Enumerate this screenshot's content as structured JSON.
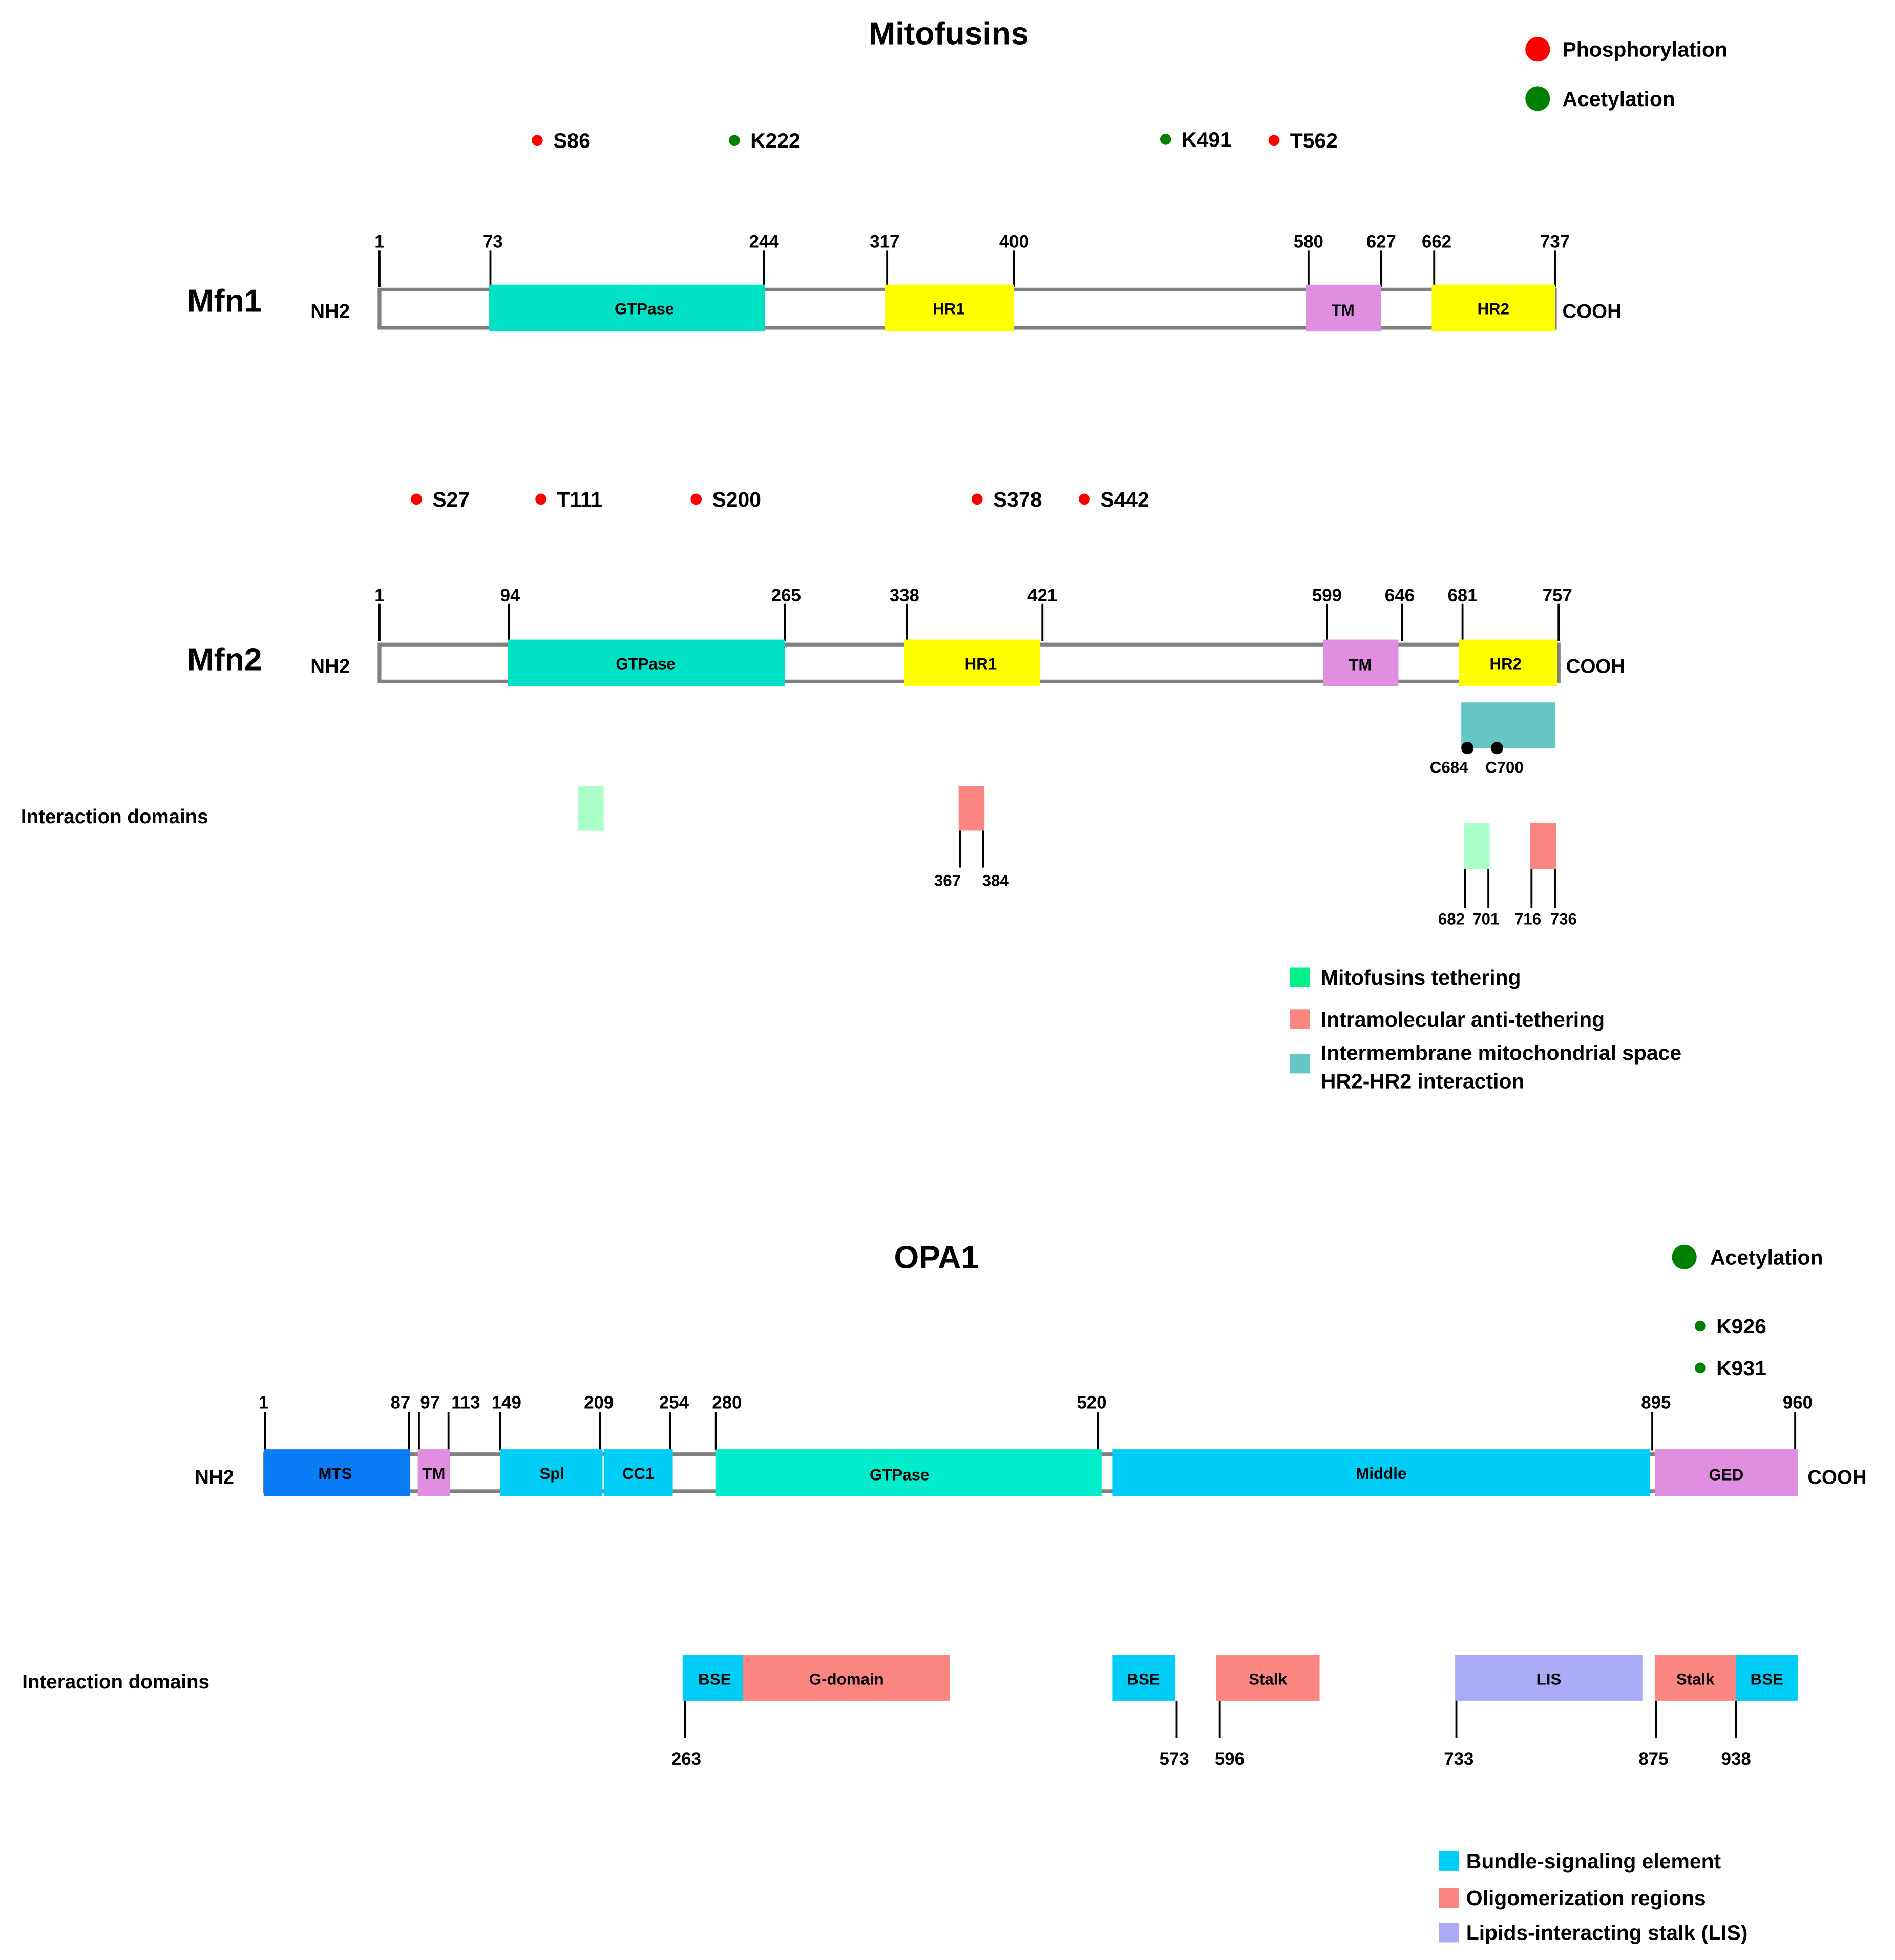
{
  "mitofusins": {
    "title": "Mitofusins",
    "legend_ptm": [
      {
        "label": "Phosphorylation",
        "color": "#ff0000"
      },
      {
        "label": "Acetylation",
        "color": "#008000"
      }
    ],
    "mfn1": {
      "name": "Mfn1",
      "n_term": "NH2",
      "c_term": "COOH",
      "positions": [
        "1",
        "73",
        "244",
        "317",
        "400",
        "580",
        "627",
        "662",
        "737"
      ],
      "domains": [
        {
          "label": "GTPase",
          "color": "#00e0c4"
        },
        {
          "label": "HR1",
          "color": "#ffff00"
        },
        {
          "label": "TM",
          "color": "#e08ee0"
        },
        {
          "label": "HR2",
          "color": "#ffff00"
        }
      ],
      "sites": [
        {
          "label": "S86",
          "color": "#ff0000"
        },
        {
          "label": "K222",
          "color": "#008000"
        },
        {
          "label": "K491",
          "color": "#008000"
        },
        {
          "label": "T562",
          "color": "#ff0000"
        }
      ]
    },
    "mfn2": {
      "name": "Mfn2",
      "n_term": "NH2",
      "c_term": "COOH",
      "positions": [
        "1",
        "94",
        "265",
        "338",
        "421",
        "599",
        "646",
        "681",
        "757"
      ],
      "domains": [
        {
          "label": "GTPase",
          "color": "#00e0c4"
        },
        {
          "label": "HR1",
          "color": "#ffff00"
        },
        {
          "label": "TM",
          "color": "#e08ee0"
        },
        {
          "label": "HR2",
          "color": "#ffff00"
        }
      ],
      "sites": [
        {
          "label": "S27",
          "color": "#ff0000"
        },
        {
          "label": "T111",
          "color": "#ff0000"
        },
        {
          "label": "S200",
          "color": "#ff0000"
        },
        {
          "label": "S378",
          "color": "#ff0000"
        },
        {
          "label": "S442",
          "color": "#ff0000"
        }
      ],
      "cysteines": [
        "C684",
        "C700"
      ],
      "interaction_label": "Interaction domains",
      "interaction_positions": [
        "367",
        "384",
        "682",
        "701",
        "716",
        "736"
      ]
    },
    "legend_domains": [
      {
        "label": "Mitofusins tethering",
        "color": "#00f08a"
      },
      {
        "label": "Intramolecular anti-tethering",
        "color": "#fb8580"
      },
      {
        "label": "Intermembrane mitochondrial space",
        "label2": "HR2-HR2 interaction",
        "color": "#66c6c6"
      }
    ]
  },
  "opa1": {
    "title": "OPA1",
    "legend_ptm": [
      {
        "label": "Acetylation",
        "color": "#008000"
      }
    ],
    "sites": [
      {
        "label": "K926",
        "color": "#008000"
      },
      {
        "label": "K931",
        "color": "#008000"
      }
    ],
    "n_term": "NH2",
    "c_term": "COOH",
    "positions": [
      "1",
      "87",
      "97",
      "113",
      "149",
      "209",
      "254",
      "280",
      "520",
      "895",
      "960"
    ],
    "domains": [
      {
        "label": "MTS",
        "color": "#0a7cf5"
      },
      {
        "label": "TM",
        "color": "#e08ee0"
      },
      {
        "label": "Spl",
        "color": "#00cdf5"
      },
      {
        "label": "CC1",
        "color": "#00cdf5"
      },
      {
        "label": "GTPase",
        "color": "#00ecca"
      },
      {
        "label": "Middle",
        "color": "#00cdf5"
      },
      {
        "label": "GED",
        "color": "#e08ee0"
      }
    ],
    "interaction_label": "Interaction domains",
    "interaction_domains": [
      {
        "label": "BSE",
        "color": "#00cdf5"
      },
      {
        "label": "G-domain",
        "color": "#fb8580"
      },
      {
        "label": "BSE",
        "color": "#00cdf5"
      },
      {
        "label": "Stalk",
        "color": "#fb8580"
      },
      {
        "label": "LIS",
        "color": "#aaaaf7"
      },
      {
        "label": "Stalk",
        "color": "#fb8580"
      },
      {
        "label": "BSE",
        "color": "#00cdf5"
      }
    ],
    "interaction_positions": [
      "263",
      "573",
      "596",
      "733",
      "875",
      "938"
    ],
    "legend_domains": [
      {
        "label": "Bundle-signaling element",
        "color": "#00cdf5"
      },
      {
        "label": "Oligomerization regions",
        "color": "#fb8580"
      },
      {
        "label": "Lipids-interacting stalk (LIS)",
        "color": "#aaaaf7"
      }
    ]
  }
}
